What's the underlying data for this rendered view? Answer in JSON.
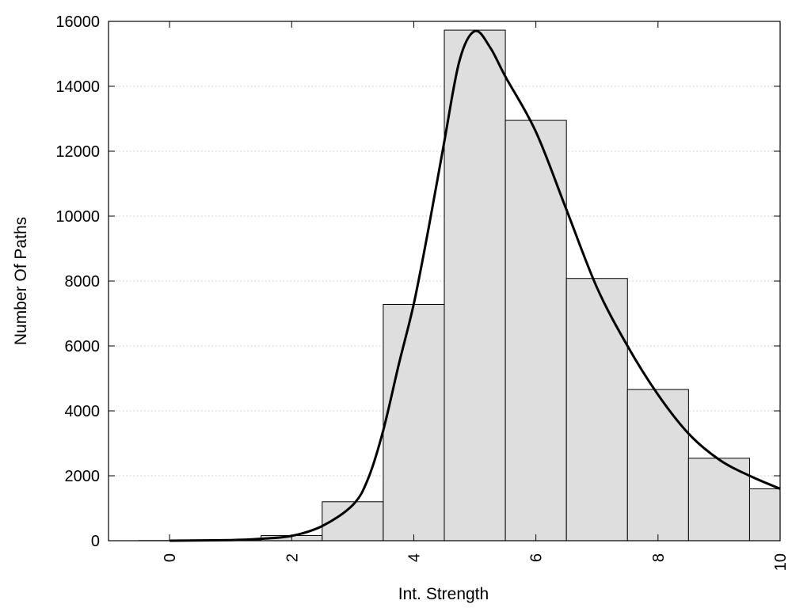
{
  "chart_data": {
    "type": "bar",
    "title": "",
    "xlabel": "Int. Strength",
    "ylabel": "Number Of Paths",
    "xlim": [
      -1,
      10
    ],
    "ylim": [
      0,
      16000
    ],
    "x_ticks": [
      0,
      2,
      4,
      6,
      8,
      10
    ],
    "y_ticks": [
      0,
      2000,
      4000,
      6000,
      8000,
      10000,
      12000,
      14000,
      16000
    ],
    "grid": "horizontal-dotted",
    "bar_width": 1,
    "bars": [
      {
        "x": 0,
        "value": 5
      },
      {
        "x": 1,
        "value": 10
      },
      {
        "x": 2,
        "value": 160
      },
      {
        "x": 3,
        "value": 1200
      },
      {
        "x": 4,
        "value": 7280
      },
      {
        "x": 5,
        "value": 15730
      },
      {
        "x": 6,
        "value": 12950
      },
      {
        "x": 7,
        "value": 8080
      },
      {
        "x": 8,
        "value": 4660
      },
      {
        "x": 9,
        "value": 2540
      },
      {
        "x": 10,
        "value": 1600
      }
    ],
    "curve": {
      "x": [
        0,
        1,
        1.5,
        2,
        2.5,
        3,
        3.25,
        3.5,
        3.75,
        4,
        4.25,
        4.5,
        4.75,
        5,
        5.25,
        5.5,
        6,
        6.5,
        7,
        7.5,
        8,
        8.5,
        9,
        9.5,
        10
      ],
      "y": [
        0,
        20,
        60,
        150,
        450,
        1100,
        1900,
        3400,
        5400,
        7300,
        9700,
        12300,
        14800,
        15700,
        15200,
        14300,
        12600,
        10200,
        7800,
        6000,
        4500,
        3300,
        2500,
        2000,
        1600
      ]
    },
    "colors": {
      "bar_fill": "#dedede",
      "bar_stroke": "#000000",
      "curve": "#000000",
      "grid": "#c8c8c8"
    }
  }
}
